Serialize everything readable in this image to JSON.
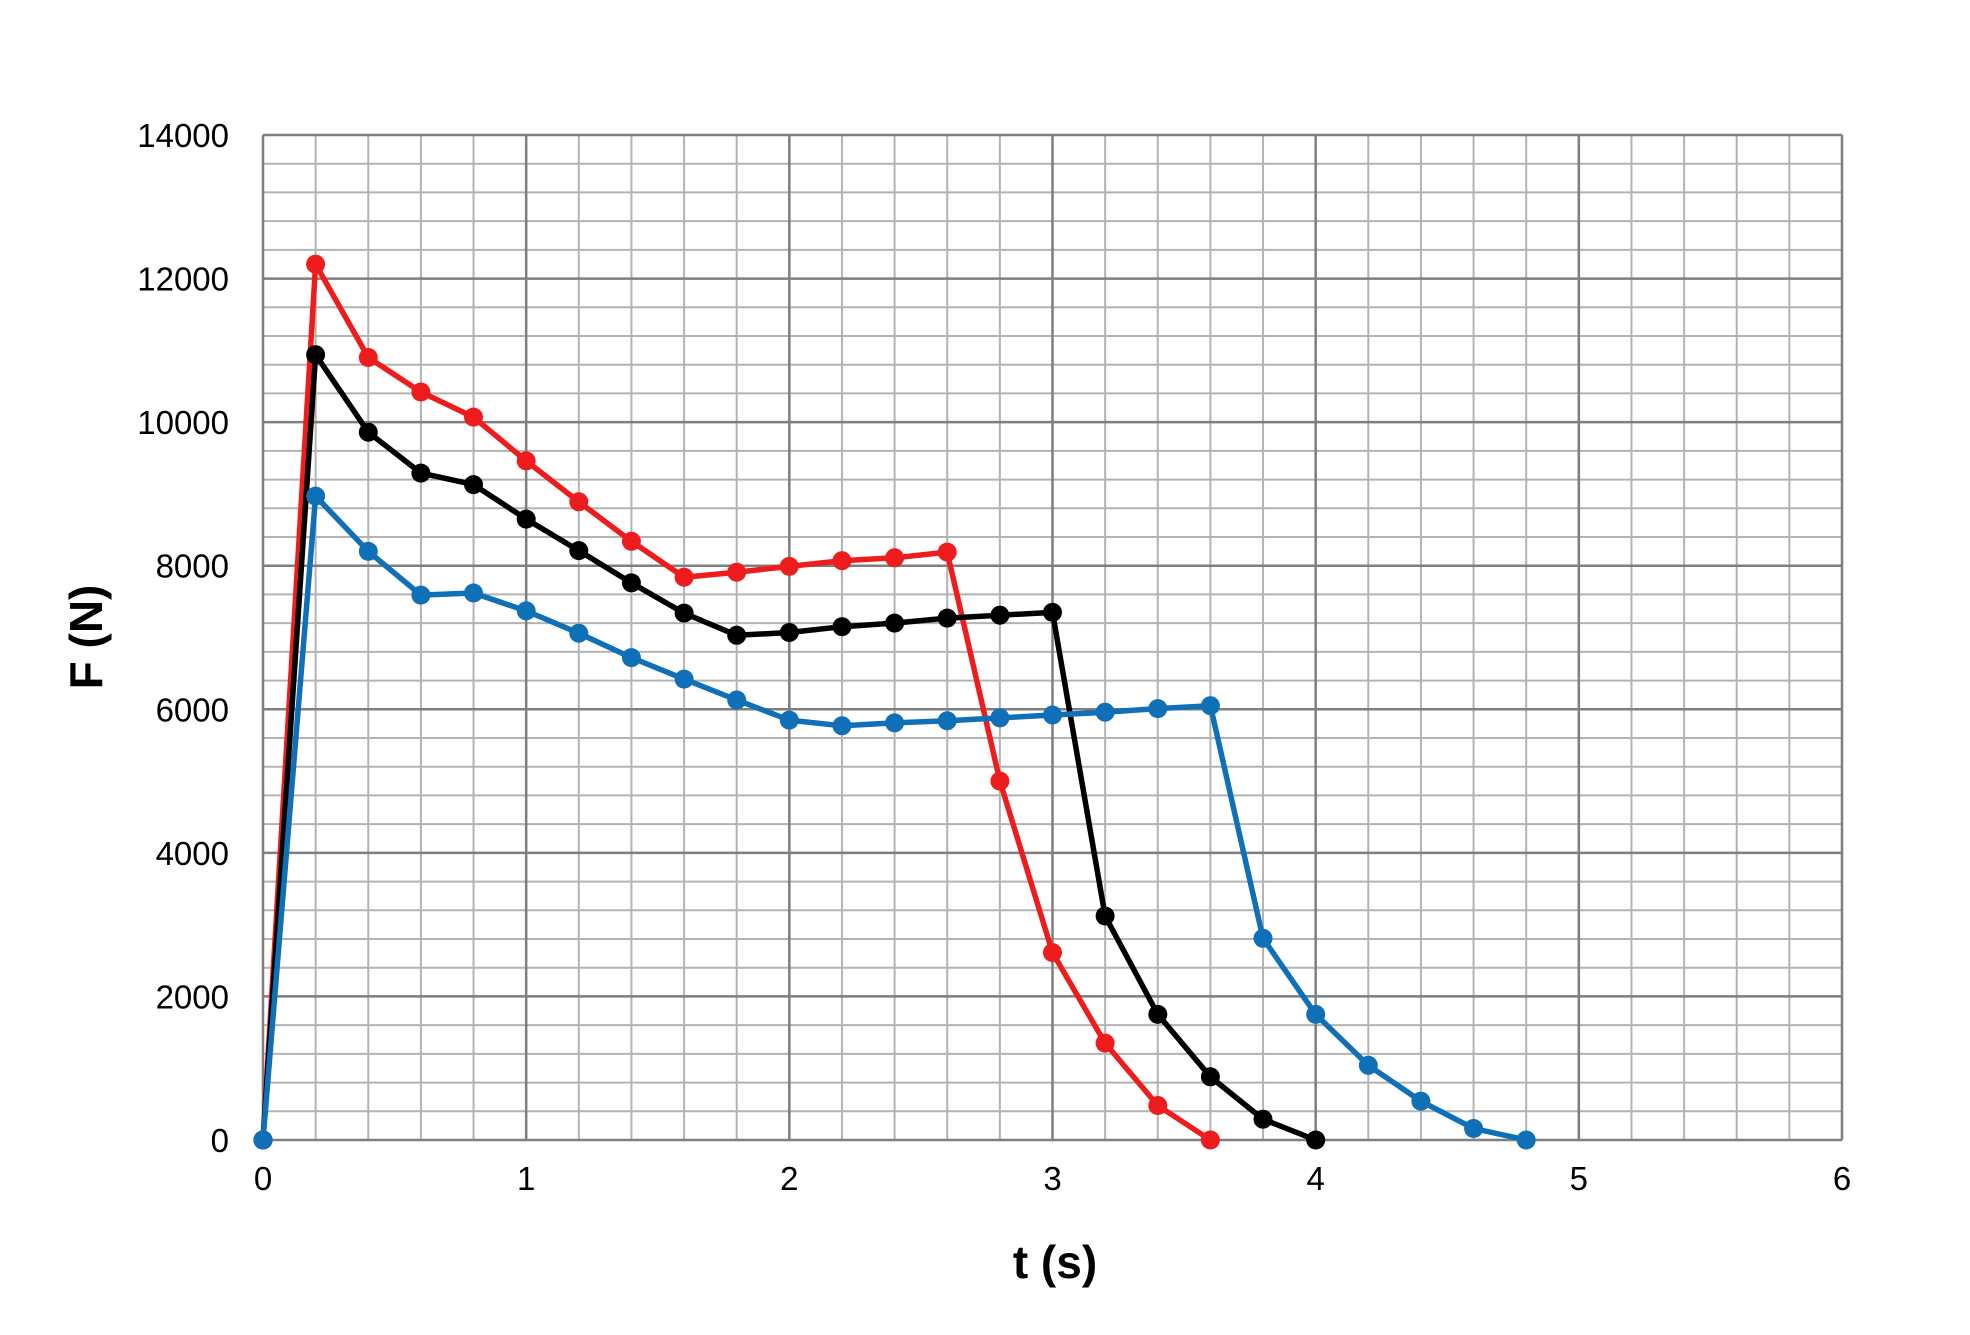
{
  "chart_data": {
    "type": "line",
    "title": "",
    "xlabel": "t (s)",
    "ylabel": "F (N)",
    "xlim": [
      0,
      6
    ],
    "ylim": [
      0,
      14000
    ],
    "x_ticks": [
      "0",
      "1",
      "2",
      "3",
      "4",
      "5",
      "6"
    ],
    "y_ticks": [
      "0",
      "2000",
      "4000",
      "6000",
      "8000",
      "10000",
      "12000",
      "14000"
    ],
    "grid": true,
    "legend": "none",
    "series": [
      {
        "color": "#ee1c1c",
        "x": [
          0,
          0.2,
          0.4,
          0.6,
          0.8,
          1.0,
          1.2,
          1.4,
          1.6,
          1.8,
          2.0,
          2.2,
          2.4,
          2.6,
          2.8,
          3.0,
          3.2,
          3.4,
          3.6
        ],
        "y": [
          0,
          12200,
          10900,
          10420,
          10070,
          9460,
          8890,
          8340,
          7840,
          7910,
          7990,
          8070,
          8110,
          8190,
          5000,
          2610,
          1350,
          480,
          0
        ]
      },
      {
        "color": "#000000",
        "x": [
          0,
          0.2,
          0.4,
          0.6,
          0.8,
          1.0,
          1.2,
          1.4,
          1.6,
          1.8,
          2.0,
          2.2,
          2.4,
          2.6,
          2.8,
          3.0,
          3.2,
          3.4,
          3.6,
          3.8,
          4.0
        ],
        "y": [
          0,
          10940,
          9860,
          9290,
          9130,
          8650,
          8210,
          7760,
          7340,
          7030,
          7070,
          7150,
          7200,
          7270,
          7310,
          7350,
          3120,
          1750,
          880,
          290,
          0
        ]
      },
      {
        "color": "#0f6fb7",
        "x": [
          0,
          0.2,
          0.4,
          0.6,
          0.8,
          1.0,
          1.2,
          1.4,
          1.6,
          1.8,
          2.0,
          2.2,
          2.4,
          2.6,
          2.8,
          3.0,
          3.2,
          3.4,
          3.6,
          3.8,
          4.0,
          4.2,
          4.4,
          4.6,
          4.8
        ],
        "y": [
          0,
          8970,
          8200,
          7590,
          7620,
          7370,
          7060,
          6720,
          6420,
          6130,
          5850,
          5770,
          5810,
          5840,
          5880,
          5920,
          5960,
          6010,
          6050,
          2810,
          1750,
          1040,
          540,
          160,
          0
        ]
      }
    ]
  }
}
